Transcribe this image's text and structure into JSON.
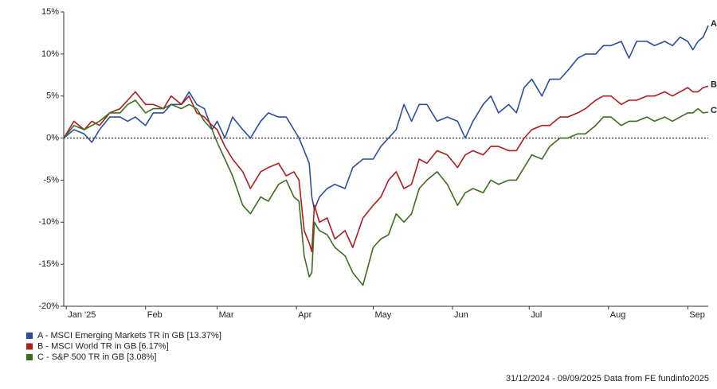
{
  "chart_data": {
    "type": "line",
    "x": [
      0,
      4,
      8,
      11,
      14,
      18,
      22,
      25,
      28,
      32,
      35,
      39,
      42,
      46,
      49,
      52,
      55,
      58,
      60,
      63,
      66,
      70,
      73,
      77,
      80,
      84,
      87,
      90,
      92,
      94,
      96,
      97,
      98,
      100,
      103,
      106,
      110,
      113,
      117,
      121,
      124,
      127,
      130,
      133,
      136,
      139,
      142,
      146,
      150,
      154,
      157,
      160,
      164,
      167,
      170,
      174,
      177,
      180,
      183,
      187,
      190,
      194,
      197,
      201,
      204,
      208,
      211,
      214,
      218,
      221,
      224,
      228,
      231,
      235,
      238,
      241,
      244,
      246,
      248,
      250,
      252
    ],
    "xlim": [
      0,
      252
    ],
    "xticks": [
      {
        "value": 1,
        "label": "Jan '25"
      },
      {
        "value": 32,
        "label": "Feb"
      },
      {
        "value": 60,
        "label": "Mar"
      },
      {
        "value": 91,
        "label": "Apr"
      },
      {
        "value": 121,
        "label": "May"
      },
      {
        "value": 152,
        "label": "Jun"
      },
      {
        "value": 182,
        "label": "Jul"
      },
      {
        "value": 213,
        "label": "Aug"
      },
      {
        "value": 244,
        "label": "Sep"
      }
    ],
    "ylim": [
      -20,
      15
    ],
    "yticks": [
      {
        "value": -20,
        "label": "-20%"
      },
      {
        "value": -15,
        "label": "-15%"
      },
      {
        "value": -10,
        "label": "-10%"
      },
      {
        "value": -5,
        "label": "-5%"
      },
      {
        "value": 0,
        "label": "0%"
      },
      {
        "value": 5,
        "label": "5%"
      },
      {
        "value": 10,
        "label": "10%"
      },
      {
        "value": 15,
        "label": "15%"
      }
    ],
    "series": [
      {
        "name": "A - MSCI Emerging Markets TR in GB [13.37%]",
        "label": "A",
        "color": "#2a4fa0",
        "values": [
          0,
          1,
          0.5,
          -0.5,
          1,
          2.5,
          2.5,
          2,
          2.5,
          1.5,
          3,
          3,
          4,
          4,
          5.5,
          4,
          3.5,
          1,
          2,
          0,
          2.5,
          1,
          0,
          2,
          3,
          2.5,
          2.5,
          1,
          0,
          -1.5,
          -3,
          -7,
          -8.5,
          -7,
          -6,
          -5.5,
          -6,
          -3.5,
          -2.5,
          -2.5,
          -1,
          0,
          1,
          4,
          2,
          4,
          4,
          2,
          2.5,
          2,
          0,
          2,
          4,
          5,
          3,
          4,
          3,
          6,
          7,
          5,
          7,
          7,
          8,
          9.5,
          10,
          10,
          11,
          11,
          11.5,
          9.5,
          11.5,
          11.5,
          11,
          11.5,
          11,
          12,
          11.5,
          10.5,
          11.5,
          12,
          13.37
        ]
      },
      {
        "name": "B - MSCI World TR in GB [6.17%]",
        "label": "B",
        "color": "#b01c1c",
        "values": [
          0,
          2,
          1,
          2,
          1.5,
          3,
          3.5,
          4.5,
          5.5,
          4,
          4,
          3.5,
          5,
          4,
          5,
          3,
          2.5,
          1.5,
          1,
          -1,
          -2.5,
          -4,
          -6,
          -4,
          -3.5,
          -3,
          -4.5,
          -4,
          -5,
          -11,
          -12.5,
          -13.5,
          -8,
          -10,
          -9.5,
          -12,
          -11,
          -13,
          -9.5,
          -8,
          -7,
          -5,
          -4,
          -6,
          -5.5,
          -2.5,
          -3,
          -1.5,
          -2,
          -3.5,
          -2,
          -1.5,
          -2,
          -1,
          -1,
          -1.5,
          -1.5,
          0,
          1,
          1.5,
          1.5,
          2.5,
          2.5,
          3,
          3.5,
          4.5,
          5,
          5,
          4,
          4.5,
          4.5,
          5,
          5,
          5.5,
          5,
          5.5,
          6,
          5.5,
          5.5,
          6,
          6.17
        ]
      },
      {
        "name": "C - S&P 500 TR in GB [3.08%]",
        "label": "C",
        "color": "#3d6e1e",
        "values": [
          0,
          1.5,
          1,
          1.5,
          2,
          3,
          3,
          4,
          4.5,
          3,
          3.5,
          3.5,
          4,
          3.5,
          4,
          3.5,
          2,
          1,
          -0.5,
          -2.5,
          -4.5,
          -8,
          -9,
          -7,
          -7.5,
          -5.5,
          -5,
          -7,
          -7.5,
          -14,
          -16.5,
          -16,
          -10,
          -11,
          -11.5,
          -13,
          -14,
          -16,
          -17.5,
          -13,
          -12,
          -11.5,
          -9,
          -10,
          -9,
          -6,
          -5,
          -4,
          -5.5,
          -8,
          -6.5,
          -6,
          -6.5,
          -5,
          -5.5,
          -5,
          -5,
          -3.5,
          -2,
          -2.5,
          -1,
          0,
          0,
          0.5,
          0.5,
          1.5,
          2.5,
          2.5,
          1.5,
          2,
          2,
          2.5,
          2,
          2.5,
          2,
          2.5,
          3,
          3,
          3.5,
          3,
          3.08
        ]
      }
    ],
    "footer": "31/12/2024 - 09/09/2025 Data from FE fundinfo2025"
  }
}
